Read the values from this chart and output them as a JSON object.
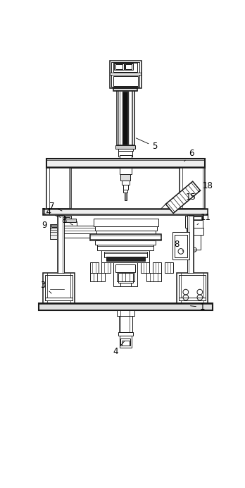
{
  "bg_color": "#ffffff",
  "line_color": "#1a1a1a",
  "lw": 0.7,
  "lw2": 1.1,
  "lw3": 1.5,
  "fig_width": 3.48,
  "fig_height": 6.92
}
